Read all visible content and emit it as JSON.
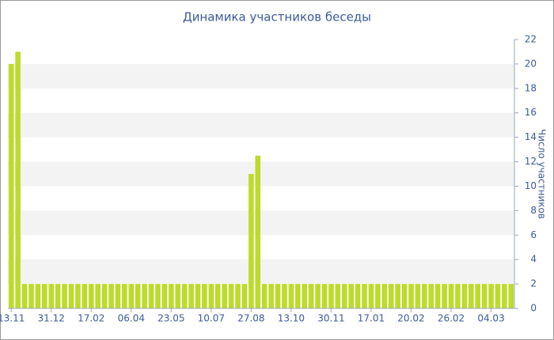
{
  "chart_data": {
    "type": "bar",
    "title": "Динамика участников беседы",
    "y_label": "Число участников",
    "categories": [
      "13.11",
      null,
      null,
      null,
      null,
      null,
      "31.12",
      null,
      null,
      null,
      null,
      null,
      "17.02",
      null,
      null,
      null,
      null,
      null,
      "06.04",
      null,
      null,
      null,
      null,
      null,
      "23.05",
      null,
      null,
      null,
      null,
      null,
      "10.07",
      null,
      null,
      null,
      null,
      null,
      "27.08",
      null,
      null,
      null,
      null,
      null,
      "13.10",
      null,
      null,
      null,
      null,
      null,
      "30.11",
      null,
      null,
      null,
      null,
      null,
      "17.01",
      null,
      null,
      null,
      null,
      null,
      "20.02",
      null,
      null,
      null,
      null,
      null,
      "26.02",
      null,
      null,
      null,
      null,
      null,
      "04.03",
      null,
      null,
      null
    ],
    "values": [
      20,
      21,
      2,
      2,
      2,
      2,
      2,
      2,
      2,
      2,
      2,
      2,
      2,
      2,
      2,
      2,
      2,
      2,
      2,
      2,
      2,
      2,
      2,
      2,
      2,
      2,
      2,
      2,
      2,
      2,
      2,
      2,
      2,
      2,
      2,
      2,
      11,
      12.5,
      2,
      2,
      2,
      2,
      2,
      2,
      2,
      2,
      2,
      2,
      2,
      2,
      2,
      2,
      2,
      2,
      2,
      2,
      2,
      2,
      2,
      2,
      2,
      2,
      2,
      2,
      2,
      2,
      2,
      2,
      2,
      2,
      2,
      2,
      2,
      2,
      2,
      2
    ],
    "color": "#bddb2b",
    "ylim": [
      0,
      22
    ],
    "yticks": [
      0,
      2,
      4,
      6,
      8,
      10,
      12,
      14,
      16,
      18,
      20,
      22
    ],
    "grid": true
  }
}
